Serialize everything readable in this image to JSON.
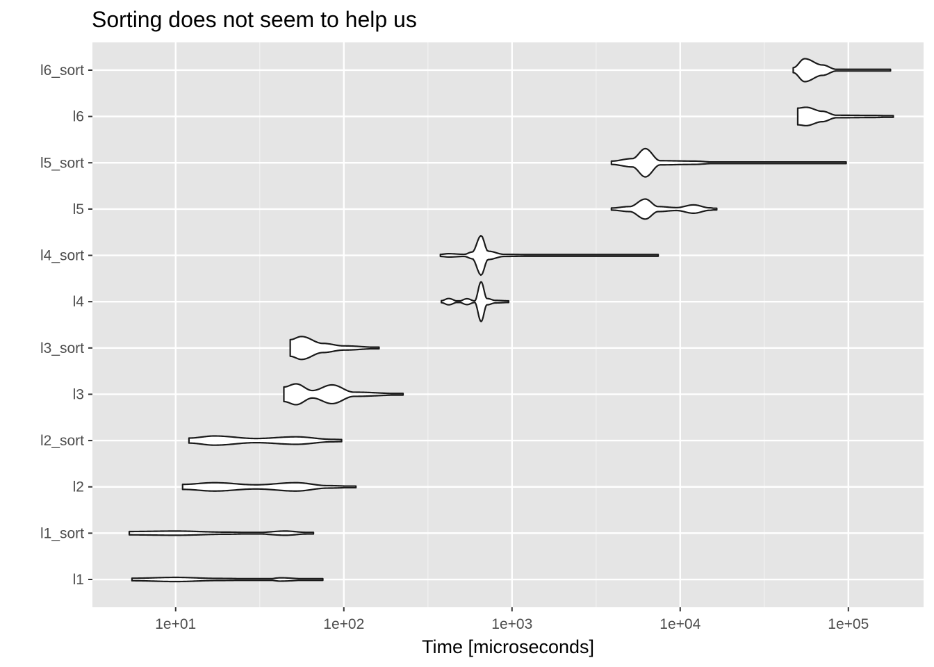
{
  "chart_data": {
    "type": "violin",
    "title": "Sorting does not seem to help us",
    "xlabel": "Time [microseconds]",
    "ylabel": "",
    "x_scale": "log10",
    "xlim": [
      3.2,
      280000
    ],
    "x_major_ticks": [
      10,
      100,
      1000,
      10000,
      100000
    ],
    "x_tick_labels": [
      "1e+01",
      "1e+02",
      "1e+03",
      "1e+04",
      "1e+05"
    ],
    "orientation": "horizontal",
    "grid": true,
    "legend": "none",
    "colors": {
      "panel": "#e5e5e5",
      "grid": "#ffffff",
      "outline": "#1a1a1a",
      "fill": "#ffffff"
    },
    "categories": [
      "l1",
      "l1_sort",
      "l2",
      "l2_sort",
      "l3",
      "l3_sort",
      "l4",
      "l4_sort",
      "l5",
      "l5_sort",
      "l6",
      "l6_sort"
    ],
    "series": [
      {
        "name": "l1",
        "min": 5.5,
        "max": 75,
        "profile": [
          [
            5.5,
            0.06
          ],
          [
            10,
            0.1
          ],
          [
            18,
            0.05
          ],
          [
            35,
            0.02
          ],
          [
            42,
            0.08
          ],
          [
            60,
            0.03
          ],
          [
            75,
            0.02
          ]
        ]
      },
      {
        "name": "l1_sort",
        "min": 5.3,
        "max": 66,
        "profile": [
          [
            5.3,
            0.08
          ],
          [
            10,
            0.1
          ],
          [
            20,
            0.05
          ],
          [
            30,
            0.03
          ],
          [
            45,
            0.1
          ],
          [
            60,
            0.04
          ],
          [
            66,
            0.03
          ]
        ]
      },
      {
        "name": "l2",
        "min": 11,
        "max": 118,
        "profile": [
          [
            11,
            0.12
          ],
          [
            17,
            0.2
          ],
          [
            30,
            0.1
          ],
          [
            52,
            0.2
          ],
          [
            80,
            0.06
          ],
          [
            118,
            0.03
          ]
        ]
      },
      {
        "name": "l2_sort",
        "min": 12,
        "max": 97,
        "profile": [
          [
            12,
            0.12
          ],
          [
            17,
            0.22
          ],
          [
            30,
            0.1
          ],
          [
            52,
            0.18
          ],
          [
            85,
            0.06
          ],
          [
            97,
            0.05
          ]
        ]
      },
      {
        "name": "l3",
        "min": 44,
        "max": 225,
        "profile": [
          [
            44,
            0.35
          ],
          [
            52,
            0.5
          ],
          [
            65,
            0.18
          ],
          [
            85,
            0.45
          ],
          [
            115,
            0.1
          ],
          [
            225,
            0.03
          ]
        ]
      },
      {
        "name": "l3_sort",
        "min": 48,
        "max": 162,
        "profile": [
          [
            48,
            0.4
          ],
          [
            56,
            0.55
          ],
          [
            75,
            0.22
          ],
          [
            100,
            0.1
          ],
          [
            162,
            0.03
          ]
        ]
      },
      {
        "name": "l4",
        "min": 380,
        "max": 955,
        "profile": [
          [
            380,
            0.05
          ],
          [
            420,
            0.15
          ],
          [
            480,
            0.02
          ],
          [
            540,
            0.14
          ],
          [
            600,
            0.04
          ],
          [
            655,
            0.95
          ],
          [
            710,
            0.15
          ],
          [
            800,
            0.06
          ],
          [
            955,
            0.04
          ]
        ]
      },
      {
        "name": "l4_sort",
        "min": 375,
        "max": 7400,
        "profile": [
          [
            375,
            0.05
          ],
          [
            420,
            0.08
          ],
          [
            520,
            0.05
          ],
          [
            580,
            0.16
          ],
          [
            655,
            0.95
          ],
          [
            720,
            0.2
          ],
          [
            900,
            0.05
          ],
          [
            1200,
            0.04
          ],
          [
            2000,
            0.02
          ],
          [
            4800,
            0.03
          ],
          [
            7400,
            0.02
          ]
        ]
      },
      {
        "name": "l5",
        "min": 3900,
        "max": 16500,
        "profile": [
          [
            3900,
            0.05
          ],
          [
            5000,
            0.12
          ],
          [
            6200,
            0.48
          ],
          [
            7400,
            0.12
          ],
          [
            9500,
            0.07
          ],
          [
            12000,
            0.2
          ],
          [
            15000,
            0.06
          ],
          [
            16500,
            0.02
          ]
        ]
      },
      {
        "name": "l5_sort",
        "min": 3900,
        "max": 97000,
        "profile": [
          [
            3900,
            0.08
          ],
          [
            5200,
            0.2
          ],
          [
            6200,
            0.68
          ],
          [
            7600,
            0.1
          ],
          [
            12000,
            0.08
          ],
          [
            17000,
            0.02
          ],
          [
            30000,
            0.01
          ],
          [
            55000,
            0.03
          ],
          [
            97000,
            0.02
          ]
        ]
      },
      {
        "name": "l6",
        "min": 50000,
        "max": 185000,
        "profile": [
          [
            50000,
            0.4
          ],
          [
            56000,
            0.44
          ],
          [
            70000,
            0.25
          ],
          [
            85000,
            0.06
          ],
          [
            140000,
            0.05
          ],
          [
            185000,
            0.03
          ]
        ]
      },
      {
        "name": "l6_sort",
        "min": 47000,
        "max": 178000,
        "profile": [
          [
            47000,
            0.12
          ],
          [
            55000,
            0.55
          ],
          [
            70000,
            0.25
          ],
          [
            85000,
            0.04
          ],
          [
            150000,
            0.03
          ],
          [
            178000,
            0.02
          ]
        ]
      }
    ]
  }
}
